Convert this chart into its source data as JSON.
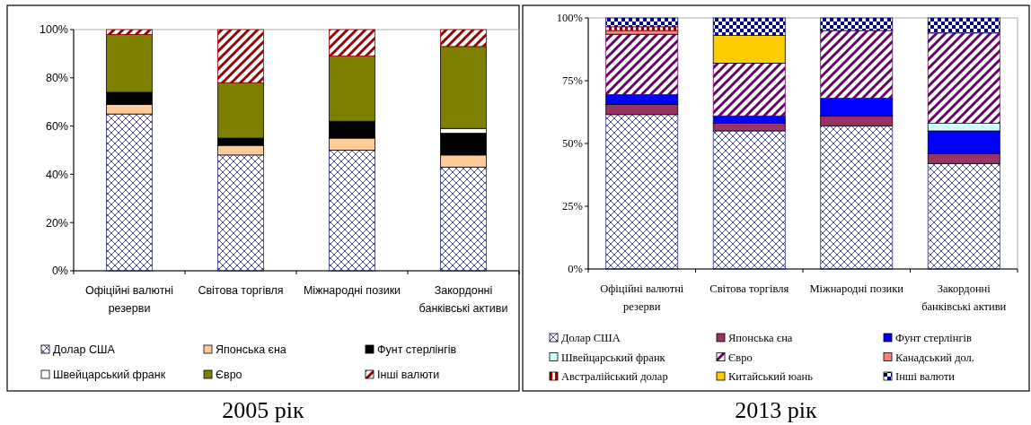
{
  "chart_data": [
    {
      "type": "bar",
      "stacked": true,
      "title": "2005 рік",
      "legend": "bottom",
      "categories": [
        "Офіційні валютні резерви",
        "Світова торгівля",
        "Міжнародні позики",
        "Закордонні банківські активи"
      ],
      "ylim": [
        0,
        100
      ],
      "yticks": [
        {
          "value": 0,
          "label": "0%"
        },
        {
          "value": 20,
          "label": "20%"
        },
        {
          "value": 40,
          "label": "40%"
        },
        {
          "value": 60,
          "label": "60%"
        },
        {
          "value": 80,
          "label": "80%"
        },
        {
          "value": 100,
          "label": "100%"
        }
      ],
      "series": [
        {
          "name": "Долар США",
          "color": "#333399",
          "values": [
            65,
            48,
            50,
            43
          ]
        },
        {
          "name": "Японська єна",
          "color": "#ffcc99",
          "values": [
            4,
            4,
            5,
            5
          ]
        },
        {
          "name": "Фунт стерлінгів",
          "color": "#000000",
          "values": [
            5,
            3,
            7,
            9
          ]
        },
        {
          "name": "Швейцарський франк",
          "color": "#ffffff",
          "values": [
            0,
            0,
            0,
            2
          ]
        },
        {
          "name": "Євро",
          "color": "#808000",
          "values": [
            24,
            23,
            27,
            34
          ]
        },
        {
          "name": "Інші валюти",
          "color": "#990000",
          "values": [
            2,
            22,
            11,
            7
          ]
        }
      ]
    },
    {
      "type": "bar",
      "stacked": true,
      "title": "2013 рік",
      "legend": "bottom",
      "categories": [
        "Офіційні валютні резерви",
        "Світова торгівля",
        "Міжнародні позики",
        "Закордонні банківські активи"
      ],
      "ylim": [
        0,
        100
      ],
      "yticks": [
        {
          "value": 0,
          "label": "0%"
        },
        {
          "value": 25,
          "label": "25%"
        },
        {
          "value": 50,
          "label": "50%"
        },
        {
          "value": 75,
          "label": "75%"
        },
        {
          "value": 100,
          "label": "100%"
        }
      ],
      "series": [
        {
          "name": "Долар США",
          "color": "#333399",
          "values": [
            61.5,
            55,
            57,
            42
          ]
        },
        {
          "name": "Японська єна",
          "color": "#993366",
          "values": [
            4,
            3,
            4,
            4
          ]
        },
        {
          "name": "Фунт стерлінгів",
          "color": "#0000ff",
          "values": [
            4,
            3,
            7,
            9
          ]
        },
        {
          "name": "Швейцарський франк",
          "color": "#ccffff",
          "values": [
            null,
            0,
            0,
            3
          ]
        },
        {
          "name": "Євро",
          "color": "#660066",
          "values": [
            24,
            21,
            27,
            36
          ]
        },
        {
          "name": "Канадський дол.",
          "color": "#ff8080",
          "values": [
            1.5,
            0,
            0,
            0
          ]
        },
        {
          "name": "Австралійський долар",
          "color": "#990000",
          "values": [
            1.5,
            0,
            0,
            0
          ]
        },
        {
          "name": "Китайський юань",
          "color": "#ffcc00",
          "values": [
            0,
            11,
            0,
            0
          ]
        },
        {
          "name": "Інші валюти",
          "color": "#000080",
          "values": [
            3.5,
            7,
            5,
            6
          ]
        }
      ]
    }
  ]
}
